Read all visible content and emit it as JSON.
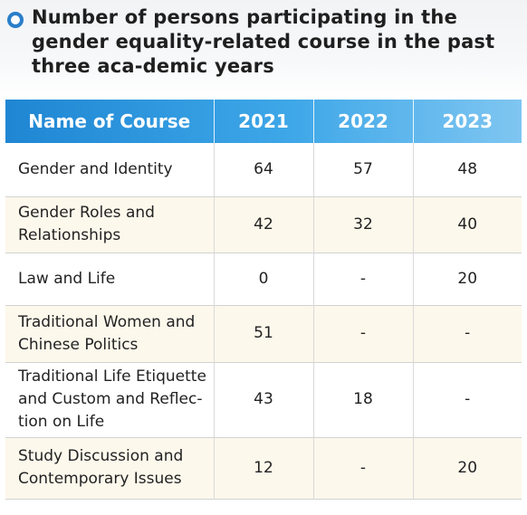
{
  "title": "Number of persons participating in the gender equality-related course in the past three aca-demic years",
  "table": {
    "headers": [
      "Name of Course",
      "2021",
      "2022",
      "2023"
    ],
    "rows": [
      {
        "course": "Gender and Identity",
        "y2021": "64",
        "y2022": "57",
        "y2023": "48"
      },
      {
        "course": "Gender Roles and Relationships",
        "y2021": "42",
        "y2022": "32",
        "y2023": "40"
      },
      {
        "course": "Law and Life",
        "y2021": "0",
        "y2022": "-",
        "y2023": "20"
      },
      {
        "course": "Traditional Women and Chinese Politics",
        "y2021": "51",
        "y2022": "-",
        "y2023": "-"
      },
      {
        "course": "Traditional Life Etiquette and Custom and Reflec-tion on Life",
        "y2021": "43",
        "y2022": "18",
        "y2023": "-"
      },
      {
        "course": "Study Discussion and Contemporary Issues",
        "y2021": "12",
        "y2022": "-",
        "y2023": "20"
      }
    ]
  },
  "colors": {
    "accent": "#2a7ec9",
    "header_start": "#1f86d3",
    "header_end": "#7fc6f1",
    "alt_row": "#fdf8ec"
  },
  "icons": {
    "bullet": "circle-bullet-icon"
  }
}
